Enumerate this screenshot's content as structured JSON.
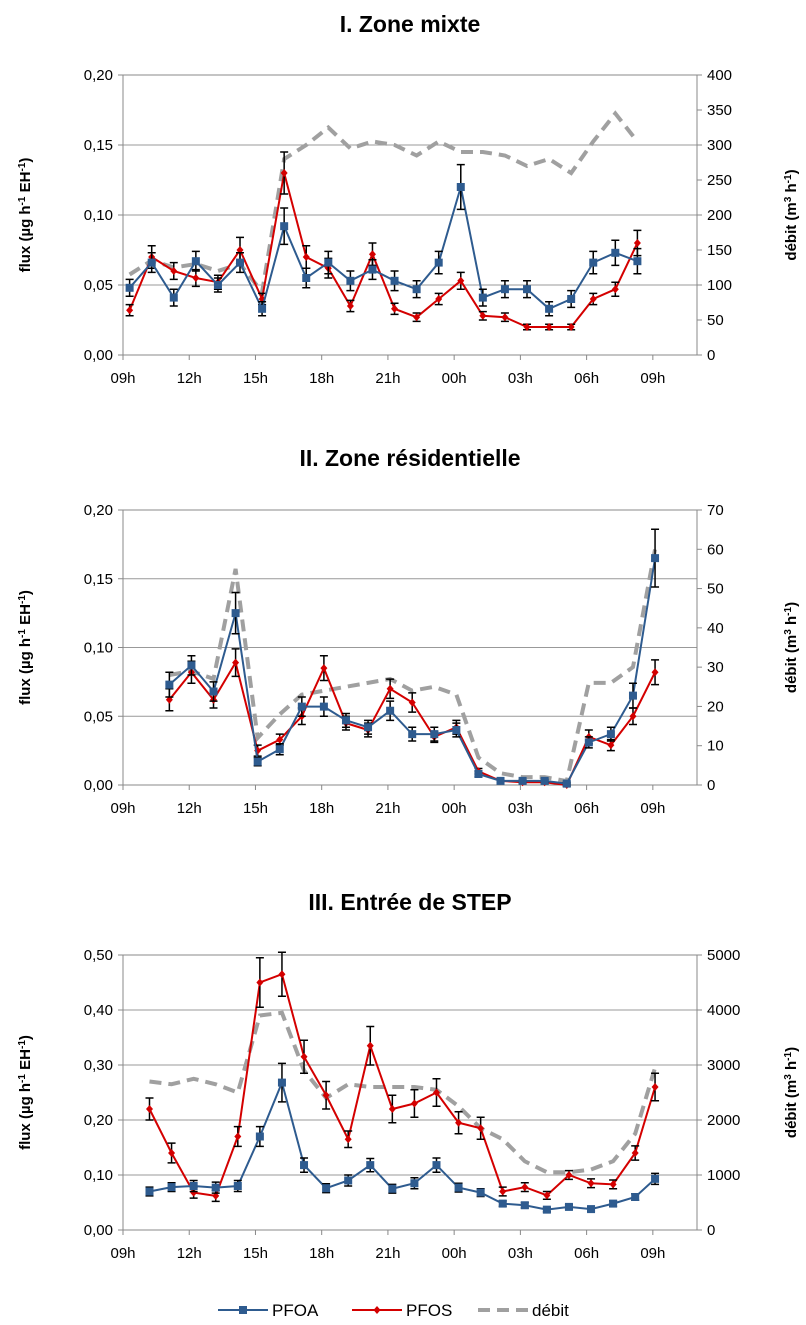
{
  "chart_data": [
    {
      "type": "line",
      "title": "I. Zone mixte",
      "ylabel": [
        "flux (µg h",
        "-1",
        " EH",
        "-1",
        ")"
      ],
      "y2label": [
        "débit (m",
        "3",
        " h",
        "-1",
        ")"
      ],
      "xlim": [
        0,
        26
      ],
      "xticks": [
        {
          "value": 0,
          "label": "09h"
        },
        {
          "value": 3,
          "label": "12h"
        },
        {
          "value": 6,
          "label": "15h"
        },
        {
          "value": 9,
          "label": "18h"
        },
        {
          "value": 12,
          "label": "21h"
        },
        {
          "value": 15,
          "label": "00h"
        },
        {
          "value": 18,
          "label": "03h"
        },
        {
          "value": 21,
          "label": "06h"
        },
        {
          "value": 24,
          "label": "09h"
        }
      ],
      "ylim": [
        0,
        0.2
      ],
      "yticks": [
        {
          "value": 0,
          "label": "0,00"
        },
        {
          "value": 0.05,
          "label": "0,05"
        },
        {
          "value": 0.1,
          "label": "0,10"
        },
        {
          "value": 0.15,
          "label": "0,15"
        },
        {
          "value": 0.2,
          "label": "0,20"
        }
      ],
      "y2lim": [
        0,
        400
      ],
      "y2ticks": [
        0,
        50,
        100,
        150,
        200,
        250,
        300,
        350,
        400
      ],
      "grid": true,
      "x": [
        0.3,
        1.3,
        2.3,
        3.3,
        4.3,
        5.3,
        6.3,
        7.3,
        8.3,
        9.3,
        10.3,
        11.3,
        12.3,
        13.3,
        14.3,
        15.3,
        16.3,
        17.3,
        18.3,
        19.3,
        20.3,
        21.3,
        22.3,
        23.3
      ],
      "series": [
        {
          "color": "#2e5b8f",
          "marker": "square",
          "values": [
            0.048,
            0.066,
            0.041,
            0.067,
            0.05,
            0.066,
            0.033,
            0.092,
            0.055,
            0.066,
            0.053,
            0.061,
            0.053,
            0.047,
            0.066,
            0.12,
            0.041,
            0.047,
            0.047,
            0.033,
            0.04,
            0.066,
            0.073,
            0.067
          ],
          "errors": [
            0.006,
            0.007,
            0.006,
            0.007,
            0.005,
            0.007,
            0.005,
            0.013,
            0.007,
            0.008,
            0.007,
            0.007,
            0.007,
            0.006,
            0.008,
            0.016,
            0.006,
            0.006,
            0.006,
            0.005,
            0.006,
            0.008,
            0.009,
            0.009
          ]
        },
        {
          "color": "#d40000",
          "marker": "diamond",
          "values": [
            0.032,
            0.07,
            0.06,
            0.055,
            0.052,
            0.075,
            0.04,
            0.13,
            0.07,
            0.062,
            0.035,
            0.072,
            0.033,
            0.027,
            0.04,
            0.053,
            0.028,
            0.027,
            0.02,
            0.02,
            0.02,
            0.04,
            0.047,
            0.08
          ],
          "errors": [
            0.004,
            0.008,
            0.006,
            0.006,
            0.005,
            0.009,
            0.004,
            0.015,
            0.008,
            0.007,
            0.004,
            0.008,
            0.004,
            0.003,
            0.004,
            0.006,
            0.003,
            0.003,
            0.002,
            0.002,
            0.002,
            0.004,
            0.005,
            0.009
          ]
        },
        {
          "color": "#a0a0a0",
          "style": "dashed",
          "axis": "y2",
          "values": [
            115,
            135,
            125,
            130,
            120,
            130,
            90,
            280,
            300,
            325,
            295,
            305,
            300,
            285,
            305,
            290,
            290,
            285,
            270,
            280,
            260,
            305,
            345,
            305
          ]
        }
      ]
    },
    {
      "type": "line",
      "title": "II. Zone résidentielle",
      "ylabel": [
        "flux (µg h",
        "-1",
        " EH",
        "-1",
        ")"
      ],
      "y2label": [
        "débit (m",
        "3",
        " h",
        "-1",
        ")"
      ],
      "xlim": [
        0,
        26
      ],
      "xticks": [
        {
          "value": 0,
          "label": "09h"
        },
        {
          "value": 3,
          "label": "12h"
        },
        {
          "value": 6,
          "label": "15h"
        },
        {
          "value": 9,
          "label": "18h"
        },
        {
          "value": 12,
          "label": "21h"
        },
        {
          "value": 15,
          "label": "00h"
        },
        {
          "value": 18,
          "label": "03h"
        },
        {
          "value": 21,
          "label": "06h"
        },
        {
          "value": 24,
          "label": "09h"
        }
      ],
      "ylim": [
        0,
        0.2
      ],
      "yticks": [
        {
          "value": 0,
          "label": "0,00"
        },
        {
          "value": 0.05,
          "label": "0,05"
        },
        {
          "value": 0.1,
          "label": "0,10"
        },
        {
          "value": 0.15,
          "label": "0,15"
        },
        {
          "value": 0.2,
          "label": "0,20"
        }
      ],
      "y2lim": [
        0,
        70
      ],
      "y2ticks": [
        0,
        10,
        20,
        30,
        40,
        50,
        60,
        70
      ],
      "grid": true,
      "x": [
        2.1,
        3.1,
        4.1,
        5.1,
        6.1,
        7.1,
        8.1,
        9.1,
        10.1,
        11.1,
        12.1,
        13.1,
        14.1,
        15.1,
        16.1,
        17.1,
        18.1,
        19.1,
        20.1,
        21.1,
        22.1,
        23.1,
        24.1
      ],
      "series": [
        {
          "color": "#2e5b8f",
          "marker": "square",
          "values": [
            0.073,
            0.087,
            0.068,
            0.125,
            0.017,
            0.026,
            0.057,
            0.057,
            0.047,
            0.042,
            0.054,
            0.037,
            0.037,
            0.04,
            0.008,
            0.003,
            0.003,
            0.003,
            0.001,
            0.031,
            0.037,
            0.065,
            0.165
          ],
          "errors": [
            0.009,
            0.007,
            0.007,
            0.015,
            0.003,
            0.004,
            0.007,
            0.007,
            0.005,
            0.005,
            0.007,
            0.005,
            0.005,
            0.005,
            0.002,
            0.001,
            0.001,
            0.001,
            0.001,
            0.004,
            0.005,
            0.009,
            0.021
          ]
        },
        {
          "color": "#d40000",
          "marker": "diamond",
          "values": [
            0.062,
            0.082,
            0.062,
            0.089,
            0.025,
            0.033,
            0.05,
            0.085,
            0.045,
            0.04,
            0.07,
            0.06,
            0.035,
            0.042,
            0.01,
            0.003,
            0.002,
            0.002,
            0,
            0.035,
            0.029,
            0.05,
            0.082
          ],
          "errors": [
            0.008,
            0.008,
            0.006,
            0.01,
            0.004,
            0.004,
            0.006,
            0.009,
            0.005,
            0.005,
            0.007,
            0.007,
            0.004,
            0.005,
            0.002,
            0.001,
            0.001,
            0.001,
            0.001,
            0.005,
            0.004,
            0.006,
            0.009
          ]
        },
        {
          "color": "#a0a0a0",
          "style": "dashed",
          "axis": "y2",
          "values": [
            28,
            29,
            27,
            55,
            12,
            18,
            23,
            24,
            25,
            26,
            27,
            24,
            25,
            23,
            7,
            3,
            2,
            2,
            1,
            26,
            26,
            30,
            60
          ]
        }
      ]
    },
    {
      "type": "line",
      "title": "III. Entrée de STEP",
      "ylabel": [
        "flux (µg h",
        "-1",
        " EH",
        "-1",
        ")"
      ],
      "y2label": [
        "débit (m",
        "3",
        " h",
        "-1",
        ")"
      ],
      "xlim": [
        0,
        26
      ],
      "xticks": [
        {
          "value": 0,
          "label": "09h"
        },
        {
          "value": 3,
          "label": "12h"
        },
        {
          "value": 6,
          "label": "15h"
        },
        {
          "value": 9,
          "label": "18h"
        },
        {
          "value": 12,
          "label": "21h"
        },
        {
          "value": 15,
          "label": "00h"
        },
        {
          "value": 18,
          "label": "03h"
        },
        {
          "value": 21,
          "label": "06h"
        },
        {
          "value": 24,
          "label": "09h"
        }
      ],
      "ylim": [
        0,
        0.5
      ],
      "yticks": [
        {
          "value": 0,
          "label": "0,00"
        },
        {
          "value": 0.1,
          "label": "0,10"
        },
        {
          "value": 0.2,
          "label": "0,20"
        },
        {
          "value": 0.3,
          "label": "0,30"
        },
        {
          "value": 0.4,
          "label": "0,40"
        },
        {
          "value": 0.5,
          "label": "0,50"
        }
      ],
      "y2lim": [
        0,
        5000
      ],
      "y2ticks": [
        0,
        1000,
        2000,
        3000,
        4000,
        5000
      ],
      "grid": true,
      "x": [
        1.2,
        2.2,
        3.2,
        4.2,
        5.2,
        6.2,
        7.2,
        8.2,
        9.2,
        10.2,
        11.2,
        12.2,
        13.2,
        14.2,
        15.2,
        16.2,
        17.2,
        18.2,
        19.2,
        20.2,
        21.2,
        22.2,
        23.2,
        24.1
      ],
      "series": [
        {
          "name": "PFOA",
          "color": "#2e5b8f",
          "marker": "square",
          "values": [
            0.07,
            0.078,
            0.08,
            0.077,
            0.08,
            0.17,
            0.268,
            0.118,
            0.076,
            0.09,
            0.118,
            0.075,
            0.085,
            0.118,
            0.077,
            0.068,
            0.048,
            0.045,
            0.037,
            0.042,
            0.038,
            0.048,
            0.06,
            0.093
          ],
          "errors": [
            0.008,
            0.008,
            0.01,
            0.01,
            0.01,
            0.018,
            0.035,
            0.013,
            0.008,
            0.01,
            0.012,
            0.008,
            0.01,
            0.013,
            0.008,
            0.007,
            0.005,
            0.005,
            0.004,
            0.004,
            0.004,
            0.005,
            0.006,
            0.01
          ]
        },
        {
          "name": "PFOS",
          "color": "#d40000",
          "marker": "diamond",
          "values": [
            0.22,
            0.14,
            0.068,
            0.062,
            0.17,
            0.45,
            0.465,
            0.315,
            0.245,
            0.165,
            0.335,
            0.22,
            0.23,
            0.25,
            0.195,
            0.185,
            0.07,
            0.078,
            0.063,
            0.1,
            0.085,
            0.083,
            0.14,
            0.26
          ],
          "errors": [
            0.02,
            0.018,
            0.01,
            0.01,
            0.018,
            0.045,
            0.04,
            0.03,
            0.025,
            0.015,
            0.035,
            0.025,
            0.025,
            0.025,
            0.02,
            0.02,
            0.008,
            0.008,
            0.007,
            0.008,
            0.008,
            0.008,
            0.013,
            0.025
          ]
        },
        {
          "name": "débit",
          "color": "#a0a0a0",
          "style": "dashed",
          "axis": "y2",
          "values": [
            2700,
            2650,
            2750,
            2650,
            2500,
            3900,
            3950,
            2900,
            2400,
            2650,
            2600,
            2600,
            2600,
            2550,
            2250,
            1850,
            1650,
            1250,
            1050,
            1050,
            1100,
            1250,
            1750,
            2950
          ]
        }
      ]
    }
  ]
}
